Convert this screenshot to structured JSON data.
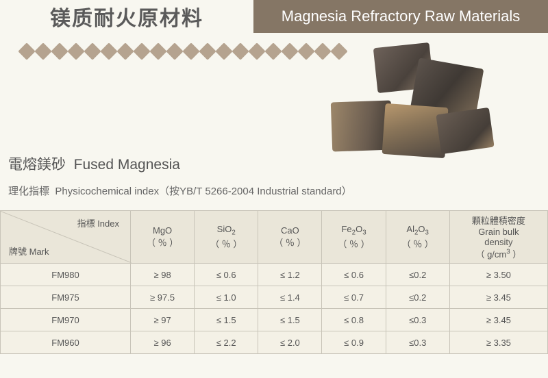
{
  "header": {
    "title_cn": "镁质耐火原材料",
    "title_en": "Magnesia Refractory Raw Materials"
  },
  "section": {
    "title_cn": "電熔鎂砂",
    "title_en": "Fused Magnesia",
    "subtitle_cn": "理化指標",
    "subtitle_en": "Physicochemical index",
    "standard": "（按YB/T 5266-2004  Industrial standard）"
  },
  "table": {
    "corner_top": "指標  Index",
    "corner_bottom": "牌號  Mark",
    "columns": [
      {
        "label_html": "MgO<br>（ ％ ）"
      },
      {
        "label_html": "SiO<sub>2</sub><br>（ ％ ）"
      },
      {
        "label_html": "CaO<br>（ ％ ）"
      },
      {
        "label_html": "Fe<sub>2</sub>O<sub>3</sub><br>（ ％ ）"
      },
      {
        "label_html": "Al<sub>2</sub>O<sub>3</sub><br>（ ％ ）"
      },
      {
        "label_html": "顆粒體積密度<br>Grain bulk<br>density<br>（ g/cm<sup>3</sup> ）"
      }
    ],
    "rows": [
      {
        "mark": "FM980",
        "cells": [
          "≥  98",
          "≤ 0.6",
          "≤ 1.2",
          "≤ 0.6",
          "≤0.2",
          "≥  3.50"
        ]
      },
      {
        "mark": "FM975",
        "cells": [
          "≥  97.5",
          "≤ 1.0",
          "≤ 1.4",
          "≤ 0.7",
          "≤0.2",
          "≥  3.45"
        ]
      },
      {
        "mark": "FM970",
        "cells": [
          "≥  97",
          "≤ 1.5",
          "≤ 1.5",
          "≤ 0.8",
          "≤0.3",
          "≥  3.45"
        ]
      },
      {
        "mark": "FM960",
        "cells": [
          "≥  96",
          "≤ 2.2",
          "≤ 2.0",
          "≤ 0.9",
          "≤0.3",
          "≥  3.35"
        ]
      }
    ]
  },
  "style": {
    "dot_count": 20,
    "colors": {
      "bg": "#f8f7f0",
      "header_dark": "#857665",
      "dot": "#b5a38f",
      "th_bg": "#eae6d9",
      "td_bg": "#f4f1e6",
      "border": "#c8c4b8",
      "text": "#555"
    }
  }
}
